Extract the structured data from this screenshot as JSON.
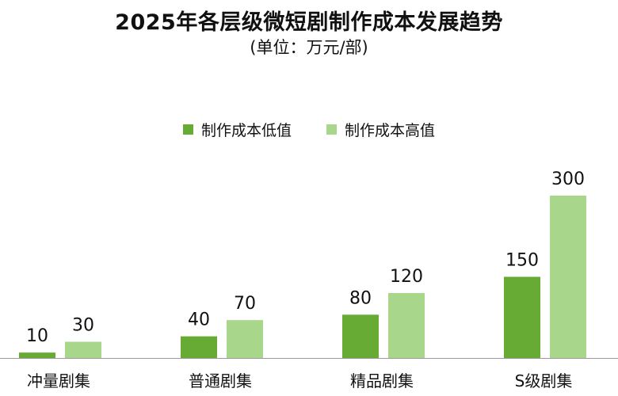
{
  "chart_data": {
    "type": "bar",
    "title": "2025年各层级微短剧制作成本发展趋势",
    "subtitle": "(单位：万元/部)",
    "categories": [
      "冲量剧集",
      "普通剧集",
      "精品剧集",
      "S级剧集"
    ],
    "series": [
      {
        "name": "制作成本低值",
        "values": [
          10,
          40,
          80,
          150
        ],
        "color": "#67ab35"
      },
      {
        "name": "制作成本高值",
        "values": [
          30,
          70,
          120,
          300
        ],
        "color": "#a8d68b"
      }
    ],
    "xlabel": "",
    "ylabel": "",
    "ylim": [
      0,
      300
    ],
    "grid": false,
    "legend": "top"
  }
}
